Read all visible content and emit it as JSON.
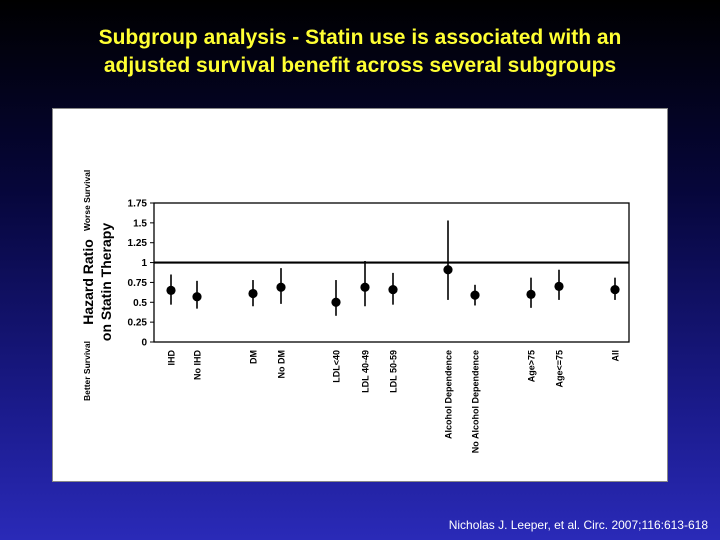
{
  "slide": {
    "title_line1": "Subgroup analysis - Statin use is associated with an",
    "title_line2": "adjusted survival benefit across several subgroups",
    "citation": "Nicholas J. Leeper, et al. Circ. 2007;116:613-618",
    "title_color": "#ffff33"
  },
  "chart_data": {
    "type": "forest",
    "ylabel": "Hazard Ratio on Statin Therapy",
    "ylabel_line1": "Hazard Ratio",
    "ylabel_line2": "on Statin Therapy",
    "annotation_top": "Worse Survival",
    "annotation_bottom": "Better Survival",
    "ylim": [
      0,
      1.75
    ],
    "yticks": [
      "0",
      "0.25",
      "0.5",
      "0.75",
      "1",
      "1.25",
      "1.5",
      "1.75"
    ],
    "reference_line": 1,
    "grid": false,
    "groups": [
      {
        "label": "IHD",
        "estimate": 0.65,
        "ci": [
          0.47,
          0.85
        ]
      },
      {
        "label": "No IHD",
        "estimate": 0.57,
        "ci": [
          0.42,
          0.77
        ]
      },
      {
        "label": "DM",
        "estimate": 0.61,
        "ci": [
          0.45,
          0.78
        ]
      },
      {
        "label": "No DM",
        "estimate": 0.69,
        "ci": [
          0.48,
          0.93
        ]
      },
      {
        "label": "LDL<40",
        "estimate": 0.5,
        "ci": [
          0.33,
          0.78
        ]
      },
      {
        "label": "LDL 40-49",
        "estimate": 0.69,
        "ci": [
          0.45,
          1.02
        ]
      },
      {
        "label": "LDL 50-59",
        "estimate": 0.66,
        "ci": [
          0.47,
          0.87
        ]
      },
      {
        "label": "Alcohol Dependence",
        "estimate": 0.91,
        "ci": [
          0.53,
          1.53
        ]
      },
      {
        "label": "No Alcohol Dependence",
        "estimate": 0.59,
        "ci": [
          0.46,
          0.72
        ]
      },
      {
        "label": "Age>75",
        "estimate": 0.6,
        "ci": [
          0.43,
          0.81
        ]
      },
      {
        "label": "Age<=75",
        "estimate": 0.7,
        "ci": [
          0.53,
          0.91
        ]
      },
      {
        "label": "All",
        "estimate": 0.66,
        "ci": [
          0.53,
          0.81
        ]
      }
    ]
  }
}
